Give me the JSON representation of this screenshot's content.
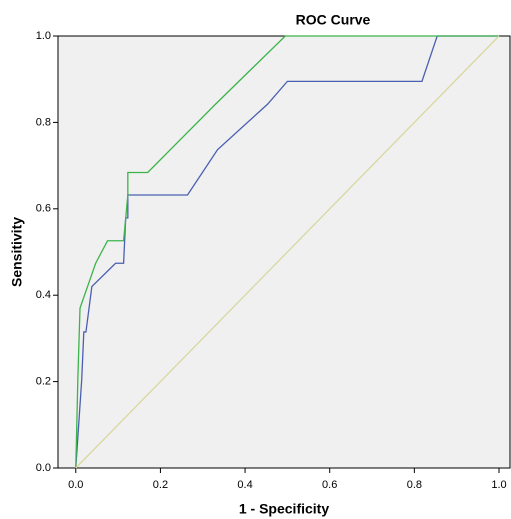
{
  "chart_data": {
    "type": "line",
    "title": "ROC Curve",
    "x_label": "1 - Specificity",
    "y_label": "Sensitivity",
    "xlim": [
      -0.042,
      1.026
    ],
    "ylim": [
      0,
      1
    ],
    "xticks": [
      {
        "value": 0,
        "label": "0.0"
      },
      0.2,
      0.4,
      0.6,
      0.8,
      {
        "value": 1,
        "label": "1.0"
      }
    ],
    "yticks": [
      {
        "value": 0,
        "label": "0.0"
      },
      0.2,
      0.4,
      0.6,
      0.8,
      {
        "value": 1,
        "label": "1.0"
      }
    ],
    "series": [
      {
        "color": "#4a5fb0",
        "x": [
          0,
          0.014,
          0.019,
          0.024,
          0.038,
          0.094,
          0.113,
          0.118,
          0.123,
          0.123,
          0.264,
          0.335,
          0.453,
          0.5,
          0.818,
          0.854,
          1.0
        ],
        "values": [
          0,
          0.204,
          0.315,
          0.315,
          0.42,
          0.474,
          0.474,
          0.579,
          0.579,
          0.632,
          0.632,
          0.737,
          0.842,
          0.895,
          0.895,
          1.0,
          1.0
        ]
      },
      {
        "color": "#3cb44b",
        "x": [
          0,
          0.005,
          0.01,
          0.047,
          0.075,
          0.113,
          0.123,
          0.123,
          0.17,
          0.33,
          0.495,
          1.0
        ],
        "values": [
          0,
          0.21,
          0.37,
          0.474,
          0.526,
          0.526,
          0.632,
          0.684,
          0.684,
          0.842,
          1.0,
          1.0
        ]
      },
      {
        "color": "#d8d8a0",
        "x": [
          0,
          1
        ],
        "values": [
          0,
          1
        ]
      }
    ]
  }
}
